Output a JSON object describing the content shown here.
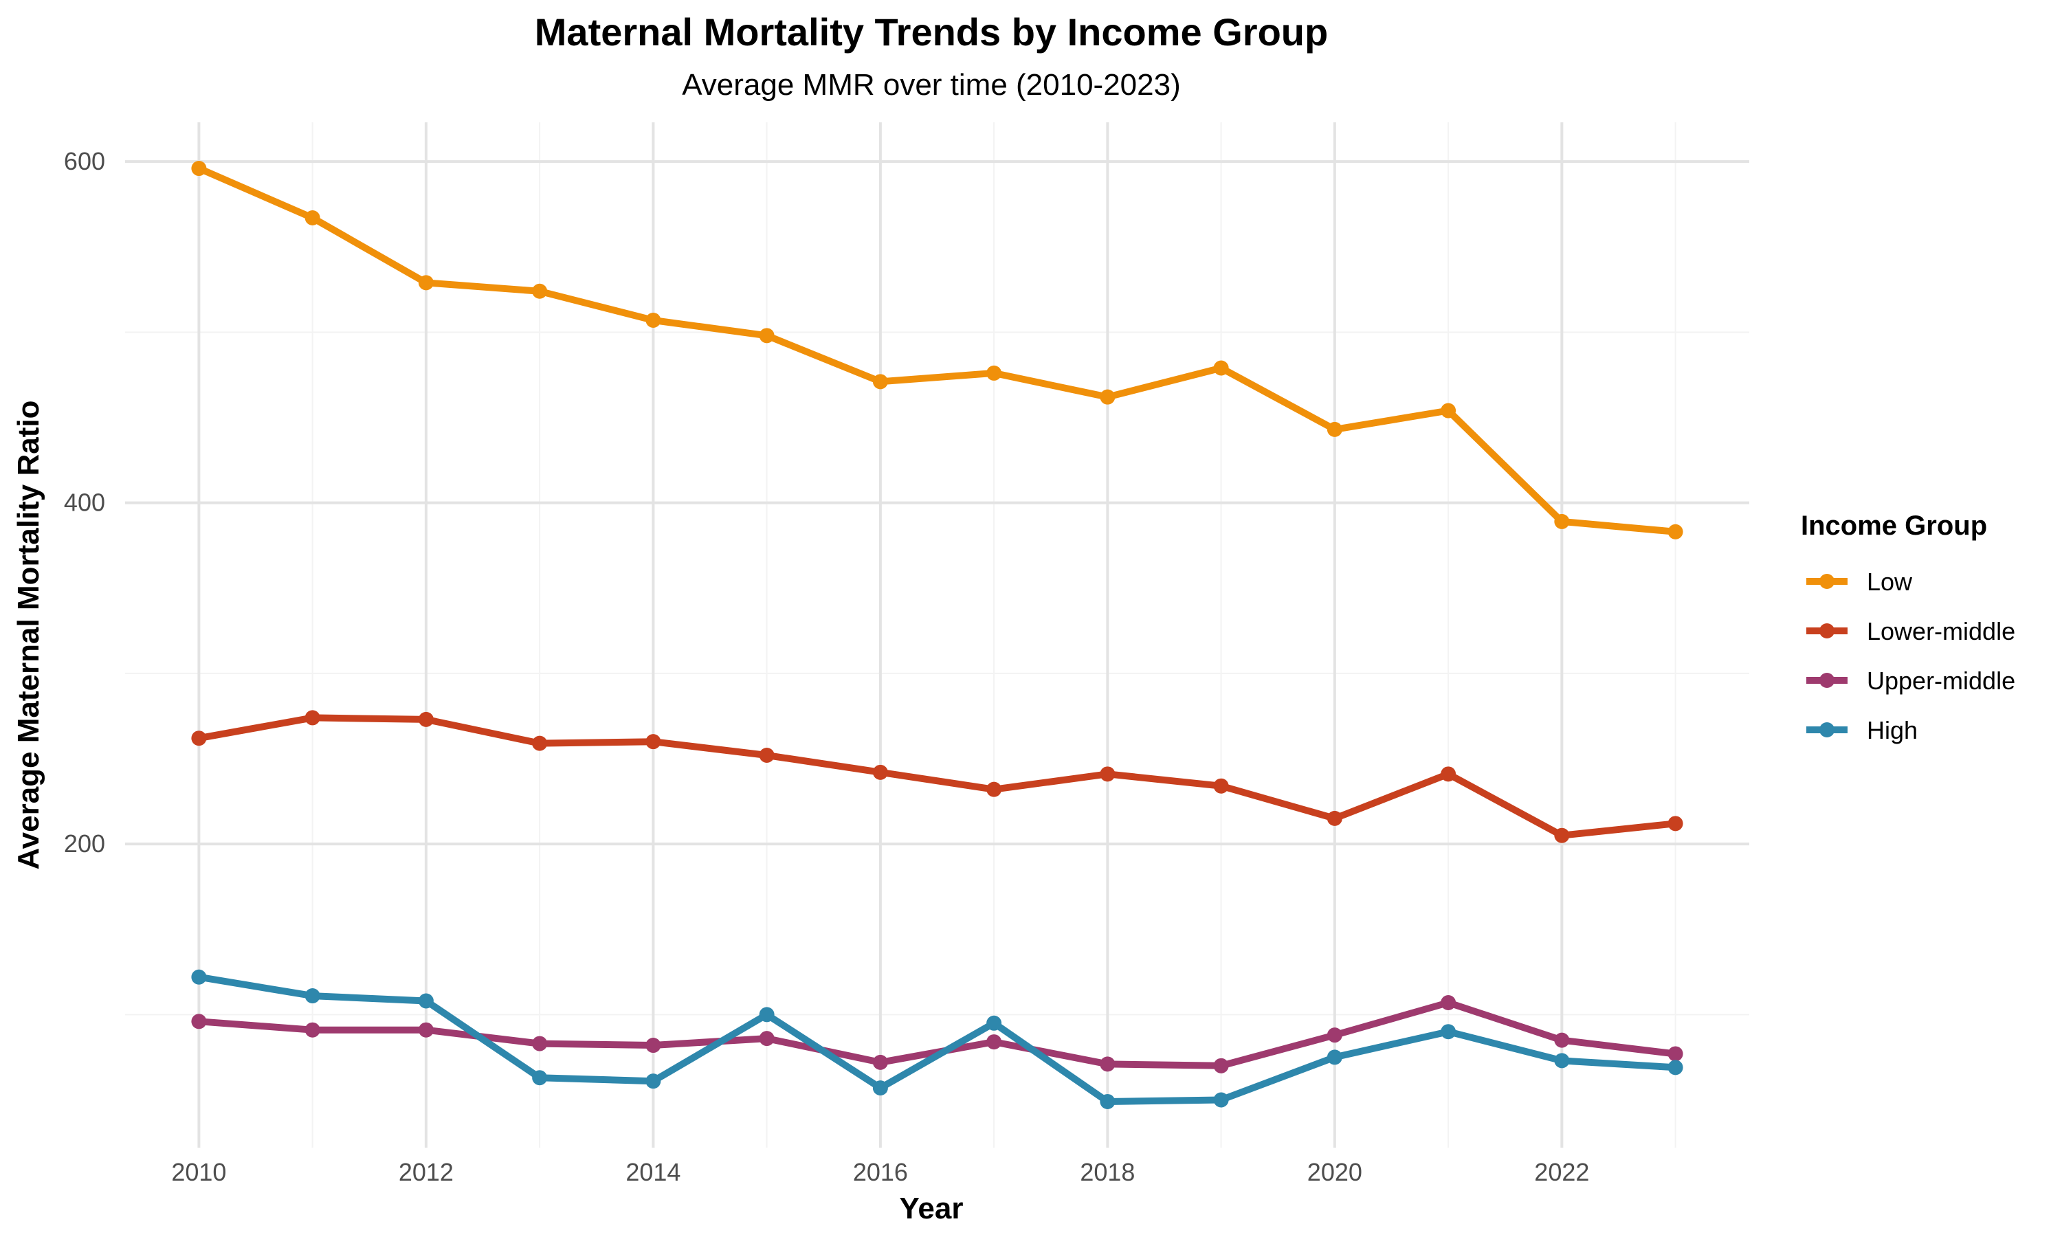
{
  "chart_data": {
    "type": "line",
    "title": "Maternal Mortality Trends by Income Group",
    "subtitle": "Average MMR over time (2010-2023)",
    "xlabel": "Year",
    "ylabel": "Average Maternal Mortality Ratio",
    "x": [
      2010,
      2011,
      2012,
      2013,
      2014,
      2015,
      2016,
      2017,
      2018,
      2019,
      2020,
      2021,
      2022,
      2023
    ],
    "xlim": [
      2009.35,
      2023.65
    ],
    "ylim": [
      22,
      623
    ],
    "x_ticks": [
      2010,
      2012,
      2014,
      2016,
      2018,
      2020,
      2022
    ],
    "x_minor_ticks": [
      2011,
      2013,
      2015,
      2017,
      2019,
      2021,
      2023
    ],
    "y_ticks": [
      200,
      400,
      600
    ],
    "y_minor_ticks": [
      100,
      300,
      500
    ],
    "grid": true,
    "legend_title": "Income Group",
    "legend_position": "right",
    "series": [
      {
        "name": "Low",
        "color": "#F0900A",
        "values": [
          596,
          567,
          529,
          524,
          507,
          498,
          471,
          476,
          462,
          479,
          443,
          454,
          389,
          383
        ]
      },
      {
        "name": "Lower-middle",
        "color": "#C8401E",
        "values": [
          262,
          274,
          273,
          259,
          260,
          252,
          242,
          232,
          241,
          234,
          215,
          241,
          205,
          212
        ]
      },
      {
        "name": "Upper-middle",
        "color": "#9E3A6E",
        "values": [
          96,
          91,
          91,
          83,
          82,
          86,
          72,
          84,
          71,
          70,
          88,
          107,
          85,
          77
        ]
      },
      {
        "name": "High",
        "color": "#2E87AC",
        "values": [
          122,
          111,
          108,
          63,
          61,
          100,
          57,
          95,
          49,
          50,
          75,
          90,
          73,
          69
        ]
      }
    ]
  }
}
